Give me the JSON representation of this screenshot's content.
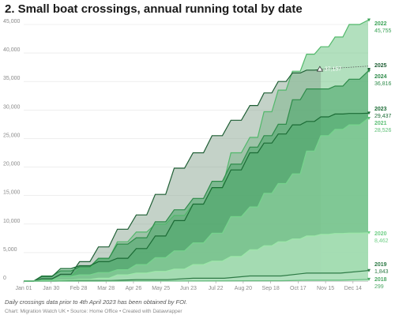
{
  "title": "2. Small boat crossings, annual running total by date",
  "note": "Daily crossings data prior to 4th April 2023 has been obtained by FOI.",
  "credit": "Chart: Migration Watch UK • Source: Home Office • Created with Datawrapper",
  "chart_data": {
    "type": "area",
    "ylim": [
      0,
      45000
    ],
    "grid": true,
    "y_ticks": [
      0,
      5000,
      10000,
      15000,
      20000,
      25000,
      30000,
      35000,
      40000,
      45000
    ],
    "y_tick_labels": [
      "0",
      "5,000",
      "10,000",
      "15,000",
      "20,000",
      "25,000",
      "30,000",
      "35,000",
      "40,000",
      "45,000"
    ],
    "x_ticks": [
      1,
      30,
      59,
      88,
      117,
      146,
      175,
      204,
      233,
      262,
      291,
      320,
      349
    ],
    "x_tick_labels": [
      "Jan 01",
      "Jan 30",
      "Feb 28",
      "Mar 28",
      "Apr 26",
      "May 25",
      "Jun 23",
      "Jul 22",
      "Aug 20",
      "Sep 18",
      "Oct 17",
      "Nov 15",
      "Dec 14"
    ],
    "xlim": [
      1,
      365
    ],
    "series": [
      {
        "name": "2022",
        "color": "#52b86b",
        "fill": "#7fcb92",
        "opacity": 0.6,
        "x": [
          1,
          20,
          40,
          60,
          80,
          100,
          120,
          140,
          160,
          180,
          200,
          220,
          240,
          255,
          270,
          285,
          300,
          315,
          330,
          345,
          365
        ],
        "y": [
          0,
          300,
          800,
          2200,
          3900,
          6900,
          8600,
          10000,
          11500,
          13500,
          16300,
          22500,
          25200,
          29700,
          33500,
          36800,
          39800,
          41100,
          42800,
          45000,
          45755
        ]
      },
      {
        "name": "2025",
        "color": "#1e5e34",
        "fill": "#8aa591",
        "opacity": 0.5,
        "x": [
          1,
          20,
          40,
          60,
          80,
          100,
          120,
          140,
          160,
          180,
          200,
          220,
          240,
          255,
          270,
          285,
          300,
          315
        ],
        "y": [
          0,
          400,
          1200,
          3400,
          6000,
          9100,
          11600,
          15200,
          19800,
          22500,
          25500,
          28200,
          30800,
          33000,
          35000,
          36500,
          37000,
          37100
        ]
      },
      {
        "name": "2024",
        "color": "#2e8b4a",
        "fill": "#4ca66a",
        "opacity": 0.6,
        "x": [
          1,
          20,
          40,
          60,
          80,
          100,
          120,
          140,
          160,
          180,
          200,
          220,
          240,
          255,
          270,
          285,
          300,
          315,
          330,
          345,
          365
        ],
        "y": [
          0,
          900,
          1800,
          2500,
          4000,
          6500,
          7600,
          10400,
          12500,
          14500,
          17500,
          20500,
          23500,
          25500,
          27500,
          31800,
          33700,
          33700,
          34200,
          35400,
          36816
        ]
      },
      {
        "name": "2023",
        "color": "#1b6b35",
        "fill": "#4aa668",
        "opacity": 0.45,
        "x": [
          1,
          20,
          40,
          60,
          80,
          100,
          120,
          140,
          160,
          180,
          200,
          220,
          240,
          255,
          270,
          285,
          300,
          315,
          330,
          345,
          365
        ],
        "y": [
          0,
          800,
          2200,
          2700,
          3400,
          4000,
          5700,
          7900,
          10600,
          13500,
          16400,
          19500,
          22500,
          24200,
          25800,
          27400,
          28000,
          28800,
          29300,
          29400,
          29437
        ]
      },
      {
        "name": "2021",
        "color": "#76d48d",
        "fill": "#a7e3b4",
        "opacity": 0.45,
        "x": [
          1,
          20,
          40,
          60,
          80,
          100,
          120,
          140,
          160,
          180,
          200,
          220,
          240,
          255,
          270,
          285,
          300,
          315,
          330,
          345,
          365
        ],
        "y": [
          0,
          200,
          800,
          1100,
          1500,
          2000,
          2900,
          4100,
          5300,
          6700,
          8400,
          11300,
          13000,
          15400,
          17100,
          18800,
          22800,
          25500,
          26600,
          27400,
          28526
        ]
      },
      {
        "name": "2020",
        "color": "#9be8a8",
        "fill": "#c9f2d1",
        "opacity": 0.5,
        "x": [
          1,
          20,
          40,
          60,
          80,
          100,
          120,
          140,
          160,
          180,
          200,
          220,
          240,
          255,
          270,
          285,
          300,
          315,
          330,
          345,
          365
        ],
        "y": [
          0,
          50,
          150,
          300,
          500,
          1100,
          1400,
          1700,
          2100,
          2900,
          3500,
          4300,
          5500,
          6200,
          6900,
          7400,
          7900,
          8200,
          8350,
          8420,
          8462
        ]
      },
      {
        "name": "2019",
        "color": "#2d7a45",
        "fill": "#c3e8cc",
        "opacity": 0.4,
        "x": [
          1,
          60,
          120,
          180,
          240,
          300,
          365
        ],
        "y": [
          0,
          80,
          250,
          500,
          900,
          1400,
          1843
        ]
      },
      {
        "name": "2018",
        "color": "#66bb7e",
        "fill": "#d9f2de",
        "opacity": 0.4,
        "x": [
          1,
          120,
          240,
          300,
          365
        ],
        "y": [
          0,
          20,
          60,
          150,
          299
        ]
      }
    ],
    "end_labels": [
      {
        "year": "2022",
        "value": "45,755",
        "color": "#3aa356"
      },
      {
        "year": "2025",
        "value": "",
        "color": "#1e5e34"
      },
      {
        "year": "2024",
        "value": "36,816",
        "color": "#2e8b4a"
      },
      {
        "year": "2023",
        "value": "29,437",
        "color": "#1b6b35"
      },
      {
        "year": "2021",
        "value": "28,526",
        "color": "#5cbf75"
      },
      {
        "year": "2020",
        "value": "8,462",
        "color": "#6fcf86"
      },
      {
        "year": "2019",
        "value": "1,843",
        "color": "#2d7a45"
      },
      {
        "year": "2018",
        "value": "299",
        "color": "#4da865"
      }
    ],
    "annotation": {
      "text": "37,157",
      "x": 314,
      "y": 37157
    }
  }
}
